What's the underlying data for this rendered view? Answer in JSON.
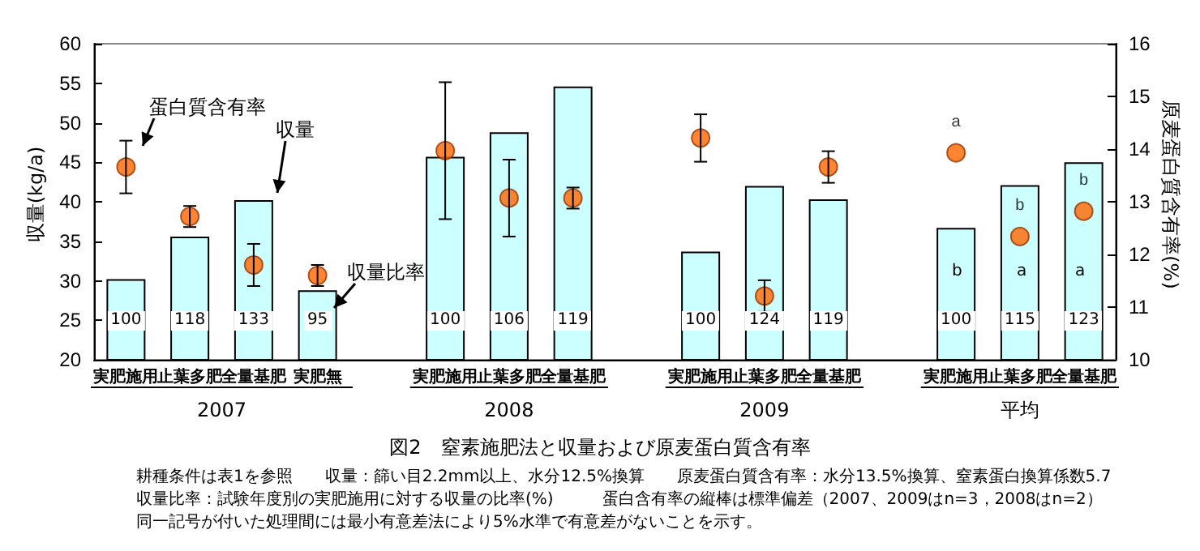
{
  "chart_data": {
    "type": "bar",
    "title": "図2　窒素施肥法と収量および原麦蛋白質含有率",
    "ylabel": "収量(kg/a)",
    "y2label": "原麦蛋白質含有率(%)",
    "categories": [
      "実肥施用",
      "止葉多肥",
      "全量基肥",
      "実肥無",
      null,
      "実肥施用",
      "止葉多肥",
      "全量基肥",
      null,
      "実肥施用",
      "止葉多肥",
      "全量基肥",
      null,
      "実肥施用",
      "止葉多肥",
      "全量基肥"
    ],
    "series": [
      {
        "color": "#ccffff",
        "values": [
          30.2,
          35.6,
          40.2,
          28.8,
          null,
          45.7,
          48.8,
          54.6,
          null,
          33.7,
          42.0,
          40.3,
          null,
          36.7,
          42.1,
          45.0
        ]
      },
      {
        "type": "scatter",
        "axis": "y2",
        "color": "#ff6600",
        "values": [
          13.66,
          12.72,
          11.8,
          11.6,
          null,
          13.97,
          13.07,
          13.07,
          null,
          14.21,
          11.21,
          13.66,
          null,
          13.93,
          12.34,
          12.82
        ],
        "errors": [
          0.5,
          0.2,
          0.4,
          0.2,
          null,
          1.3,
          0.73,
          0.2,
          null,
          0.45,
          0.3,
          0.3,
          null,
          null,
          null,
          null
        ],
        "value_labels": [
          null,
          null,
          null,
          null,
          null,
          null,
          null,
          null,
          null,
          null,
          null,
          null,
          null,
          "a",
          "b",
          "b"
        ]
      }
    ],
    "ylim": [
      20,
      60
    ],
    "yticks": [
      20,
      25,
      30,
      35,
      40,
      45,
      50,
      55,
      60
    ],
    "y2lim": [
      10,
      16
    ],
    "y2ticks": [
      10,
      11,
      12,
      13,
      14,
      15,
      16
    ],
    "grid": false,
    "marker": "circle",
    "annotations": [
      "2007",
      "2008",
      "2009",
      "平均",
      "蛋白質含有率",
      "収量",
      "収量比率",
      "b",
      "a",
      "a",
      "100",
      "118",
      "133",
      "95",
      "100",
      "106",
      "119",
      "100",
      "124",
      "119",
      "100",
      "115",
      "123",
      "耕種条件は表1を参照　　収量：篩い目2.2mm以上、水分12.5%換算　　原麦蛋白質含有率：水分13.5%換算、窒素蛋白換算係数5.7",
      "収量比率：試験年度別の実肥施用に対する収量の比率(%)　　　蛋白含有率の縦棒は標準偏差（2007、2009はn=3，2008はn=2）",
      "同一記号が付いた処理間には最小有意差法により5%水準で有意差がないことを示す。"
    ]
  }
}
